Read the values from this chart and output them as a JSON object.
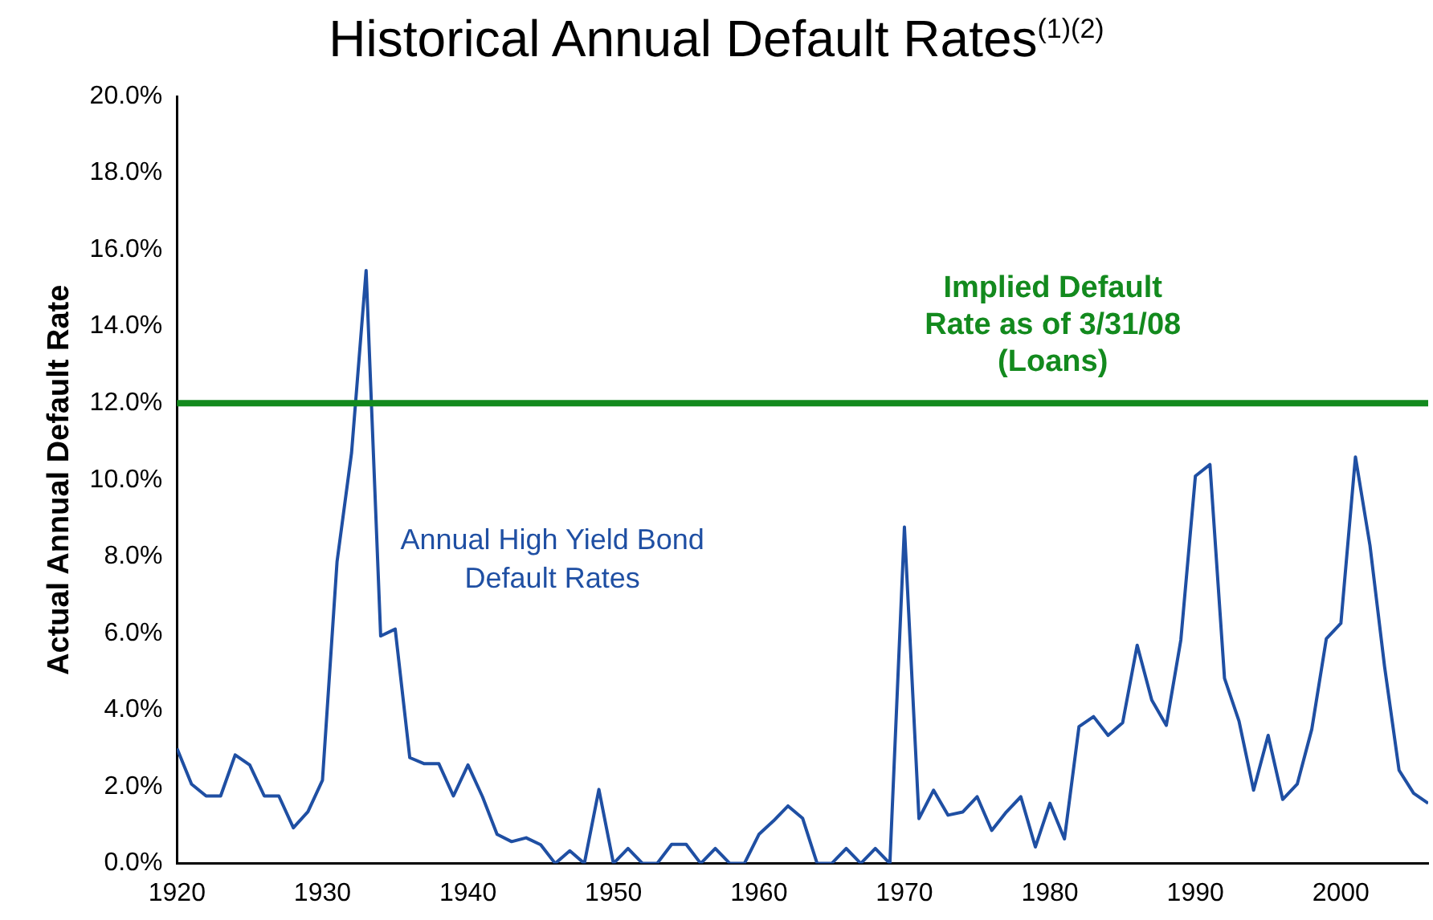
{
  "chart_data": {
    "type": "line",
    "title": "Historical Annual Default Rates$^{(1)(2)}$",
    "ylabel": "Actual Annual Default Rate",
    "x": [
      1920,
      1921,
      1922,
      1923,
      1924,
      1925,
      1926,
      1927,
      1928,
      1929,
      1930,
      1931,
      1932,
      1933,
      1934,
      1935,
      1936,
      1937,
      1938,
      1939,
      1940,
      1941,
      1942,
      1943,
      1944,
      1945,
      1946,
      1947,
      1948,
      1949,
      1950,
      1951,
      1952,
      1953,
      1954,
      1955,
      1956,
      1957,
      1958,
      1959,
      1960,
      1961,
      1962,
      1963,
      1964,
      1965,
      1966,
      1967,
      1968,
      1969,
      1970,
      1971,
      1972,
      1973,
      1974,
      1975,
      1976,
      1977,
      1978,
      1979,
      1980,
      1981,
      1982,
      1983,
      1984,
      1985,
      1986,
      1987,
      1988,
      1989,
      1990,
      1991,
      1992,
      1993,
      1994,
      1995,
      1996,
      1997,
      1998,
      1999,
      2000,
      2001,
      2002,
      2003,
      2004,
      2005,
      2006
    ],
    "series": [
      {
        "name": "Annual High Yield Bond Default Rates",
        "color": "#1f4fa3",
        "values": [
          3.0,
          2.07,
          1.76,
          1.76,
          2.83,
          2.57,
          1.76,
          1.76,
          0.93,
          1.35,
          2.17,
          7.86,
          10.71,
          15.46,
          5.93,
          6.11,
          2.76,
          2.6,
          2.6,
          1.76,
          2.57,
          1.74,
          0.76,
          0.57,
          0.67,
          0.49,
          0,
          0.33,
          0,
          1.93,
          0,
          0.39,
          0,
          0,
          0.5,
          0.5,
          0,
          0.39,
          0,
          0,
          0.76,
          1.11,
          1.5,
          1.18,
          0,
          0,
          0.39,
          0,
          0.39,
          0,
          8.77,
          1.17,
          1.91,
          1.26,
          1.34,
          1.74,
          0.86,
          1.34,
          1.74,
          0.43,
          1.57,
          0.64,
          3.57,
          3.83,
          3.34,
          3.67,
          5.69,
          4.26,
          3.6,
          5.83,
          10.1,
          10.4,
          4.83,
          3.71,
          1.91,
          3.34,
          1.67,
          2.07,
          3.5,
          5.86,
          6.26,
          10.6,
          8.29,
          5.14,
          2.43,
          1.83,
          1.57
        ]
      }
    ],
    "xlim": [
      1920,
      2006
    ],
    "xticks": [
      1920,
      1930,
      1940,
      1950,
      1960,
      1970,
      1980,
      1990,
      2000
    ],
    "ylim": [
      0,
      20
    ],
    "yticks": [
      {
        "value": 0,
        "label": "0.0%"
      },
      {
        "value": 2,
        "label": "2.0%"
      },
      {
        "value": 4,
        "label": "4.0%"
      },
      {
        "value": 6,
        "label": "6.0%"
      },
      {
        "value": 8,
        "label": "8.0%"
      },
      {
        "value": 10,
        "label": "10.0%"
      },
      {
        "value": 12,
        "label": "12.0%"
      },
      {
        "value": 14,
        "label": "14.0%"
      },
      {
        "value": 16,
        "label": "16.0%"
      },
      {
        "value": 18,
        "label": "18.0%"
      },
      {
        "value": 20,
        "label": "20.0%"
      }
    ],
    "ref_lines": [
      {
        "axis": "y",
        "value": 12,
        "label": "Implied Default Rate as of 3/31/08 (Loans)",
        "color": "#138a1e"
      }
    ],
    "grid": false,
    "legend": false,
    "marker": "none",
    "line_style": "solid"
  }
}
